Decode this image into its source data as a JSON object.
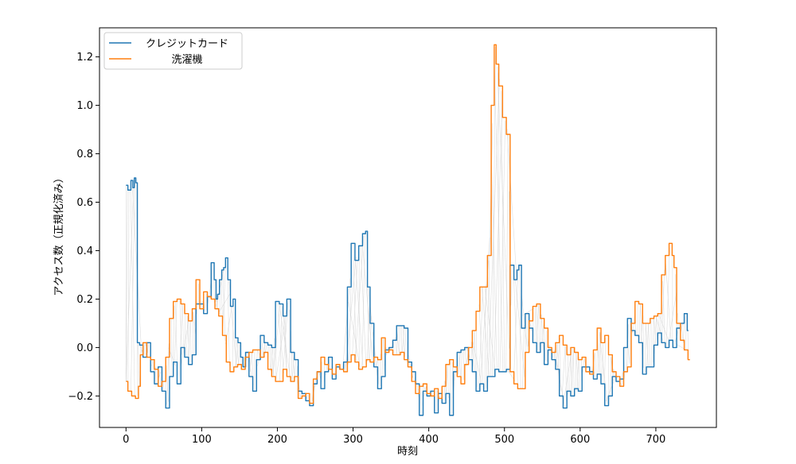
{
  "chart_data": {
    "type": "line",
    "title": "",
    "xlabel": "時刻",
    "ylabel": "アクセス数（正規化済み）",
    "xlim": [
      -35,
      780
    ],
    "ylim": [
      -0.33,
      1.32
    ],
    "xticks": [
      0,
      100,
      200,
      300,
      400,
      500,
      600,
      700
    ],
    "yticks": [
      -0.2,
      0.0,
      0.2,
      0.4,
      0.6,
      0.8,
      1.0,
      1.2
    ],
    "ytick_labels": [
      "−0.2",
      "0.0",
      "0.2",
      "0.4",
      "0.6",
      "0.8",
      "1.0",
      "1.2"
    ],
    "legend_position": "upper-left",
    "grid": false,
    "series": [
      {
        "name": "クレジットカード",
        "color": "#1f77b4",
        "points": [
          [
            0,
            0.67
          ],
          [
            5,
            0.65
          ],
          [
            8,
            0.69
          ],
          [
            10,
            0.66
          ],
          [
            12,
            0.7
          ],
          [
            14,
            0.68
          ],
          [
            16,
            0.02
          ],
          [
            20,
            0.01
          ],
          [
            25,
            -0.04
          ],
          [
            30,
            0.02
          ],
          [
            35,
            -0.1
          ],
          [
            40,
            -0.15
          ],
          [
            45,
            -0.08
          ],
          [
            50,
            -0.18
          ],
          [
            55,
            -0.25
          ],
          [
            60,
            -0.12
          ],
          [
            65,
            -0.06
          ],
          [
            70,
            -0.15
          ],
          [
            75,
            0.0
          ],
          [
            80,
            -0.04
          ],
          [
            85,
            -0.07
          ],
          [
            90,
            -0.03
          ],
          [
            95,
            0.18
          ],
          [
            100,
            0.18
          ],
          [
            105,
            0.14
          ],
          [
            110,
            0.21
          ],
          [
            115,
            0.35
          ],
          [
            118,
            0.28
          ],
          [
            120,
            0.2
          ],
          [
            122,
            0.22
          ],
          [
            125,
            0.28
          ],
          [
            128,
            0.32
          ],
          [
            130,
            0.33
          ],
          [
            133,
            0.37
          ],
          [
            136,
            0.28
          ],
          [
            140,
            0.17
          ],
          [
            143,
            0.2
          ],
          [
            146,
            0.04
          ],
          [
            150,
            0.02
          ],
          [
            153,
            -0.04
          ],
          [
            156,
            -0.08
          ],
          [
            160,
            -0.02
          ],
          [
            165,
            -0.12
          ],
          [
            170,
            -0.18
          ],
          [
            175,
            -0.05
          ],
          [
            180,
            0.05
          ],
          [
            185,
            0.02
          ],
          [
            190,
            0.01
          ],
          [
            195,
            0.0
          ],
          [
            200,
            0.19
          ],
          [
            205,
            0.18
          ],
          [
            210,
            0.13
          ],
          [
            215,
            0.2
          ],
          [
            220,
            -0.02
          ],
          [
            225,
            -0.05
          ],
          [
            230,
            -0.18
          ],
          [
            235,
            -0.19
          ],
          [
            240,
            -0.22
          ],
          [
            245,
            -0.24
          ],
          [
            250,
            -0.15
          ],
          [
            255,
            -0.1
          ],
          [
            260,
            -0.17
          ],
          [
            265,
            -0.1
          ],
          [
            270,
            -0.04
          ],
          [
            275,
            -0.13
          ],
          [
            280,
            -0.08
          ],
          [
            285,
            -0.09
          ],
          [
            290,
            -0.06
          ],
          [
            295,
            0.25
          ],
          [
            300,
            0.43
          ],
          [
            305,
            0.36
          ],
          [
            310,
            0.42
          ],
          [
            315,
            0.47
          ],
          [
            318,
            0.48
          ],
          [
            320,
            0.25
          ],
          [
            325,
            0.1
          ],
          [
            330,
            -0.08
          ],
          [
            335,
            -0.17
          ],
          [
            340,
            -0.12
          ],
          [
            345,
            -0.01
          ],
          [
            350,
            0.0
          ],
          [
            355,
            0.03
          ],
          [
            360,
            0.09
          ],
          [
            365,
            0.09
          ],
          [
            370,
            0.08
          ],
          [
            375,
            -0.06
          ],
          [
            380,
            -0.1
          ],
          [
            385,
            -0.15
          ],
          [
            390,
            -0.28
          ],
          [
            395,
            -0.18
          ],
          [
            400,
            -0.2
          ],
          [
            405,
            -0.18
          ],
          [
            410,
            -0.27
          ],
          [
            415,
            -0.19
          ],
          [
            420,
            -0.23
          ],
          [
            425,
            -0.19
          ],
          [
            430,
            -0.28
          ],
          [
            435,
            -0.1
          ],
          [
            440,
            -0.02
          ],
          [
            445,
            -0.01
          ],
          [
            450,
            0.0
          ],
          [
            455,
            -0.05
          ],
          [
            460,
            -0.1
          ],
          [
            465,
            -0.18
          ],
          [
            470,
            -0.15
          ],
          [
            475,
            -0.18
          ],
          [
            480,
            -0.12
          ],
          [
            485,
            -0.12
          ],
          [
            490,
            -0.09
          ],
          [
            495,
            -0.1
          ],
          [
            500,
            -0.1
          ],
          [
            505,
            -0.09
          ],
          [
            510,
            0.34
          ],
          [
            515,
            0.28
          ],
          [
            518,
            0.32
          ],
          [
            520,
            0.34
          ],
          [
            525,
            0.08
          ],
          [
            530,
            0.14
          ],
          [
            535,
            0.08
          ],
          [
            540,
            0.02
          ],
          [
            545,
            -0.02
          ],
          [
            550,
            0.02
          ],
          [
            555,
            -0.07
          ],
          [
            560,
            -0.01
          ],
          [
            565,
            -0.05
          ],
          [
            570,
            -0.09
          ],
          [
            575,
            -0.2
          ],
          [
            580,
            -0.25
          ],
          [
            585,
            -0.18
          ],
          [
            590,
            -0.2
          ],
          [
            595,
            -0.17
          ],
          [
            600,
            -0.18
          ],
          [
            605,
            -0.08
          ],
          [
            610,
            -0.08
          ],
          [
            615,
            -0.1
          ],
          [
            620,
            -0.13
          ],
          [
            625,
            -0.11
          ],
          [
            630,
            -0.15
          ],
          [
            635,
            -0.24
          ],
          [
            640,
            -0.2
          ],
          [
            645,
            -0.12
          ],
          [
            650,
            -0.14
          ],
          [
            655,
            -0.13
          ],
          [
            660,
            0.0
          ],
          [
            665,
            0.12
          ],
          [
            670,
            0.07
          ],
          [
            675,
            0.05
          ],
          [
            680,
            0.02
          ],
          [
            685,
            -0.11
          ],
          [
            690,
            -0.08
          ],
          [
            695,
            -0.08
          ],
          [
            700,
            0.01
          ],
          [
            705,
            0.06
          ],
          [
            710,
            0.02
          ],
          [
            715,
            0.0
          ],
          [
            720,
            0.03
          ],
          [
            725,
            0.0
          ],
          [
            730,
            0.08
          ],
          [
            735,
            0.1
          ],
          [
            740,
            0.14
          ],
          [
            743,
            0.07
          ]
        ]
      },
      {
        "name": "洗濯機",
        "color": "#ff7f0e",
        "points": [
          [
            0,
            -0.14
          ],
          [
            5,
            -0.18
          ],
          [
            10,
            -0.2
          ],
          [
            15,
            -0.21
          ],
          [
            18,
            -0.16
          ],
          [
            20,
            -0.03
          ],
          [
            25,
            0.02
          ],
          [
            30,
            -0.04
          ],
          [
            35,
            -0.05
          ],
          [
            40,
            -0.09
          ],
          [
            45,
            -0.16
          ],
          [
            50,
            -0.14
          ],
          [
            55,
            -0.04
          ],
          [
            60,
            0.12
          ],
          [
            65,
            0.19
          ],
          [
            70,
            0.2
          ],
          [
            75,
            0.18
          ],
          [
            80,
            0.14
          ],
          [
            85,
            0.11
          ],
          [
            90,
            0.16
          ],
          [
            95,
            0.28
          ],
          [
            100,
            0.16
          ],
          [
            105,
            0.23
          ],
          [
            110,
            0.21
          ],
          [
            115,
            0.2
          ],
          [
            120,
            0.16
          ],
          [
            125,
            0.13
          ],
          [
            130,
            0.05
          ],
          [
            135,
            -0.06
          ],
          [
            140,
            -0.1
          ],
          [
            145,
            -0.08
          ],
          [
            150,
            -0.07
          ],
          [
            155,
            -0.09
          ],
          [
            160,
            -0.04
          ],
          [
            165,
            -0.02
          ],
          [
            170,
            -0.01
          ],
          [
            175,
            -0.01
          ],
          [
            180,
            -0.04
          ],
          [
            185,
            -0.02
          ],
          [
            190,
            -0.09
          ],
          [
            195,
            -0.12
          ],
          [
            200,
            -0.14
          ],
          [
            205,
            -0.14
          ],
          [
            210,
            -0.09
          ],
          [
            215,
            -0.12
          ],
          [
            220,
            -0.14
          ],
          [
            225,
            -0.12
          ],
          [
            230,
            -0.21
          ],
          [
            235,
            -0.2
          ],
          [
            240,
            -0.19
          ],
          [
            245,
            -0.23
          ],
          [
            250,
            -0.13
          ],
          [
            255,
            -0.1
          ],
          [
            260,
            -0.04
          ],
          [
            265,
            -0.07
          ],
          [
            270,
            -0.09
          ],
          [
            275,
            -0.11
          ],
          [
            280,
            -0.07
          ],
          [
            285,
            -0.09
          ],
          [
            290,
            -0.1
          ],
          [
            295,
            -0.06
          ],
          [
            300,
            -0.03
          ],
          [
            305,
            -0.06
          ],
          [
            310,
            -0.09
          ],
          [
            315,
            -0.08
          ],
          [
            320,
            -0.05
          ],
          [
            325,
            -0.06
          ],
          [
            330,
            -0.04
          ],
          [
            335,
            -0.05
          ],
          [
            340,
            0.04
          ],
          [
            345,
            -0.02
          ],
          [
            350,
            -0.01
          ],
          [
            355,
            -0.03
          ],
          [
            360,
            -0.03
          ],
          [
            365,
            -0.02
          ],
          [
            370,
            -0.05
          ],
          [
            375,
            -0.08
          ],
          [
            380,
            -0.14
          ],
          [
            385,
            -0.19
          ],
          [
            390,
            -0.16
          ],
          [
            395,
            -0.15
          ],
          [
            400,
            -0.19
          ],
          [
            405,
            -0.2
          ],
          [
            410,
            -0.17
          ],
          [
            415,
            -0.21
          ],
          [
            420,
            -0.16
          ],
          [
            425,
            -0.07
          ],
          [
            430,
            -0.05
          ],
          [
            435,
            -0.08
          ],
          [
            440,
            -0.12
          ],
          [
            445,
            -0.15
          ],
          [
            450,
            -0.07
          ],
          [
            455,
            0.0
          ],
          [
            460,
            0.07
          ],
          [
            465,
            0.15
          ],
          [
            470,
            0.25
          ],
          [
            475,
            0.25
          ],
          [
            480,
            0.38
          ],
          [
            485,
            1.0
          ],
          [
            488,
            1.25
          ],
          [
            490,
            1.17
          ],
          [
            495,
            1.08
          ],
          [
            500,
            0.95
          ],
          [
            505,
            0.88
          ],
          [
            510,
            -0.1
          ],
          [
            515,
            -0.15
          ],
          [
            520,
            -0.17
          ],
          [
            525,
            -0.17
          ],
          [
            530,
            -0.02
          ],
          [
            535,
            0.11
          ],
          [
            540,
            0.17
          ],
          [
            545,
            0.18
          ],
          [
            550,
            0.12
          ],
          [
            555,
            0.08
          ],
          [
            560,
            0.0
          ],
          [
            565,
            -0.02
          ],
          [
            570,
            0.02
          ],
          [
            575,
            0.05
          ],
          [
            580,
            0.01
          ],
          [
            585,
            -0.03
          ],
          [
            590,
            0.0
          ],
          [
            595,
            -0.02
          ],
          [
            600,
            -0.05
          ],
          [
            605,
            -0.04
          ],
          [
            610,
            -0.1
          ],
          [
            615,
            -0.11
          ],
          [
            620,
            -0.01
          ],
          [
            625,
            0.08
          ],
          [
            630,
            0.02
          ],
          [
            635,
            0.05
          ],
          [
            640,
            -0.03
          ],
          [
            645,
            -0.1
          ],
          [
            650,
            -0.12
          ],
          [
            655,
            -0.16
          ],
          [
            660,
            -0.1
          ],
          [
            665,
            -0.08
          ],
          [
            670,
            0.1
          ],
          [
            675,
            0.19
          ],
          [
            680,
            0.18
          ],
          [
            685,
            0.1
          ],
          [
            690,
            0.1
          ],
          [
            695,
            0.12
          ],
          [
            700,
            0.13
          ],
          [
            705,
            0.14
          ],
          [
            710,
            0.3
          ],
          [
            715,
            0.38
          ],
          [
            720,
            0.43
          ],
          [
            723,
            0.38
          ],
          [
            725,
            0.33
          ],
          [
            730,
            0.1
          ],
          [
            735,
            0.03
          ],
          [
            740,
            -0.01
          ],
          [
            745,
            -0.05
          ]
        ]
      }
    ]
  }
}
